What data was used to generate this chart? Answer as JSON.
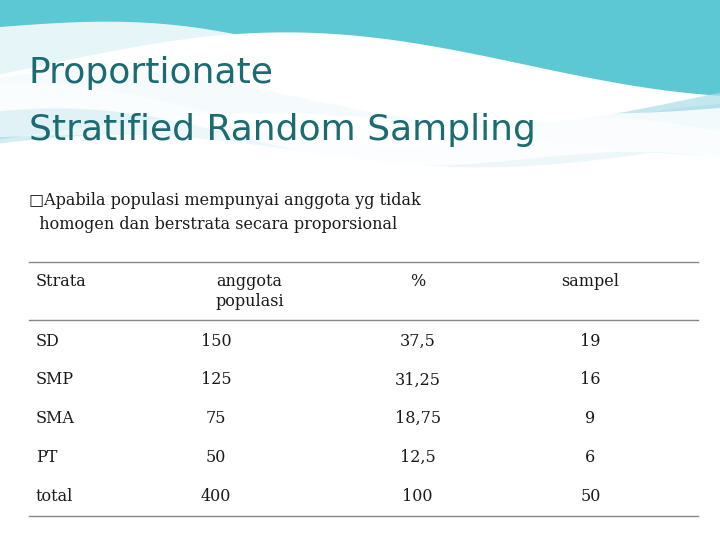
{
  "title_line1": "Proportionate",
  "title_line2": "Stratified Random Sampling",
  "subtitle_line1": "□Apabila populasi mempunyai anggota yg tidak",
  "subtitle_line2": "  homogen dan berstrata secara proporsional",
  "table_col1_header": "Strata",
  "table_col2_header1": "anggota",
  "table_col2_header2": "populasi",
  "table_col3_header": "%",
  "table_col4_header": "sampel",
  "table_rows": [
    [
      "SD",
      "150",
      "37,5",
      "19"
    ],
    [
      "SMP",
      "125",
      "31,25",
      "16"
    ],
    [
      "SMA",
      "75",
      "18,75",
      "9"
    ],
    [
      "PT",
      "50",
      "12,5",
      "6"
    ],
    [
      "total",
      "400",
      "100",
      "50"
    ]
  ],
  "bg_color": "#ffffff",
  "teal_wave_color": "#5bc8d4",
  "light_teal_color": "#a8dde8",
  "title_color": "#1a6b72",
  "subtitle_color": "#1a1a1a",
  "table_text_color": "#1a1a1a",
  "line_color": "#888888",
  "fig_width": 7.2,
  "fig_height": 5.4,
  "dpi": 100
}
